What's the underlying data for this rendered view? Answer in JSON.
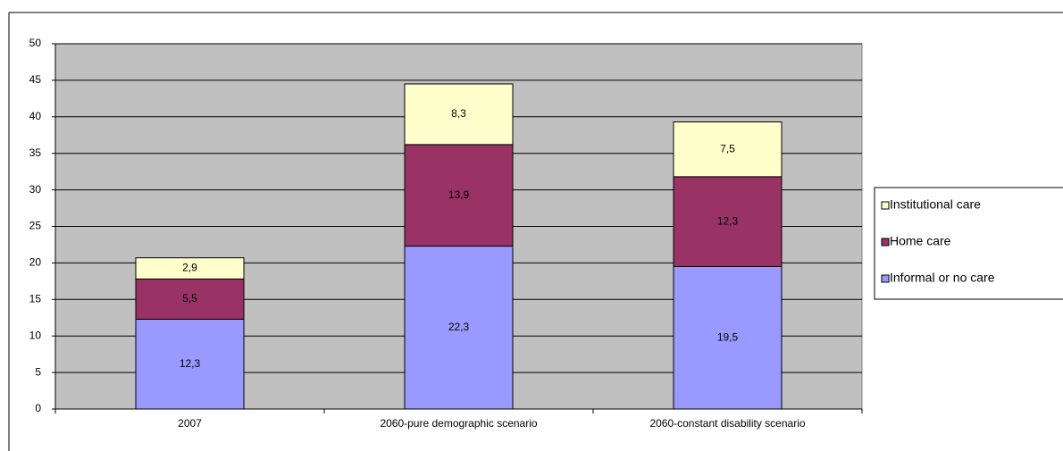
{
  "chart_data": {
    "type": "stacked_bar",
    "categories": [
      "2007",
      "2060-pure demographic scenario",
      "2060-constant disability scenario"
    ],
    "series": [
      {
        "name": "Informal or no care",
        "color": "#9999ff",
        "values": [
          12.3,
          22.3,
          19.5
        ],
        "value_labels": [
          "12,3",
          "22,3",
          "19,5"
        ]
      },
      {
        "name": "Home care",
        "color": "#993366",
        "values": [
          5.5,
          13.9,
          12.3
        ],
        "value_labels": [
          "5,5",
          "13,9",
          "12,3"
        ]
      },
      {
        "name": "Institutional care",
        "color": "#ffffcc",
        "values": [
          2.9,
          8.3,
          7.5
        ],
        "value_labels": [
          "2,9",
          "8,3",
          "7,5"
        ]
      }
    ],
    "ylim": [
      0,
      50
    ],
    "yticks": [
      0,
      5,
      10,
      15,
      20,
      25,
      30,
      35,
      40,
      45,
      50
    ],
    "grid": true,
    "legend": "right"
  }
}
